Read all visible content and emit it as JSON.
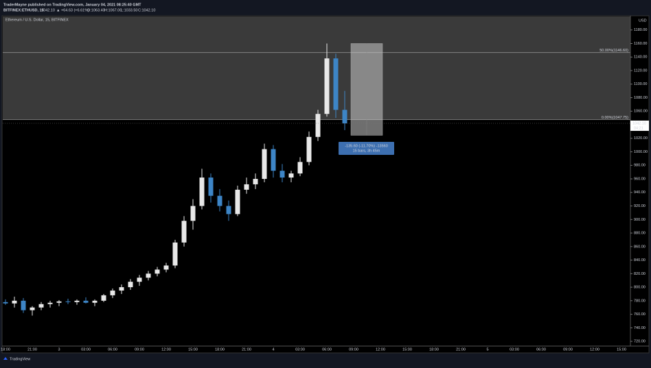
{
  "header": {
    "line1": "TraderMayne published on TradingView.com, January 04, 2021 08:25:40 GMT",
    "symbol": "BITFINEX:ETHUSD, 15",
    "last": "1042.10",
    "change": "▲ +64.63 (+6.61%)",
    "ohlc": [
      "O:1063.40",
      "H:1067.00",
      "L:1033.50",
      "C:1042.10"
    ]
  },
  "chart_data": {
    "type": "candlestick",
    "title": "Ethereum / U.S. Dollar, 15, BITFINEX",
    "y_axis_label": "USD",
    "categories": [
      "18:00",
      null,
      null,
      "21:00",
      null,
      null,
      "3",
      null,
      null,
      "03:00",
      null,
      null,
      "06:00",
      null,
      null,
      "09:00",
      null,
      null,
      "12:00",
      null,
      null,
      "15:00",
      null,
      null,
      "18:00",
      null,
      null,
      "21:00",
      null,
      null,
      "4",
      null,
      null,
      "03:00",
      null,
      null,
      "06:00",
      null,
      null,
      "09:00",
      null,
      null,
      "12:00",
      null,
      null,
      "15:00",
      null,
      null,
      "18:00",
      null,
      null,
      "21:00",
      null,
      null,
      "5",
      null,
      null,
      "03:00",
      null,
      null,
      "06:00",
      null,
      null,
      "09:00",
      null,
      null,
      "12:00",
      null,
      null,
      "15:00"
    ],
    "open": [
      778,
      776,
      780,
      766,
      770,
      775,
      777,
      779,
      778,
      780,
      777,
      780,
      788,
      795,
      800,
      808,
      814,
      820,
      826,
      832,
      866,
      898,
      920,
      962,
      935,
      920,
      908,
      944,
      952,
      960,
      1004,
      972,
      962,
      968,
      985,
      1022,
      1056,
      1138,
      1062,
      null,
      null,
      null,
      null,
      null,
      null,
      null,
      null,
      null,
      null,
      null,
      null,
      null,
      null,
      null,
      null,
      null,
      null,
      null,
      null,
      null,
      null,
      null,
      null,
      null,
      null,
      null,
      null,
      null,
      null,
      null
    ],
    "high": [
      782,
      786,
      784,
      772,
      778,
      780,
      781,
      783,
      782,
      785,
      782,
      790,
      798,
      804,
      812,
      818,
      824,
      830,
      836,
      870,
      905,
      930,
      975,
      968,
      945,
      928,
      950,
      962,
      968,
      1012,
      1010,
      982,
      972,
      992,
      1030,
      1062,
      1160,
      1145,
      1090,
      null,
      null,
      null,
      null,
      null,
      null,
      null,
      null,
      null,
      null,
      null,
      null,
      null,
      null,
      null,
      null,
      null,
      null,
      null,
      null,
      null,
      null,
      null,
      null,
      null,
      null,
      null,
      null,
      null,
      null,
      null
    ],
    "low": [
      774,
      770,
      762,
      758,
      766,
      770,
      772,
      775,
      774,
      776,
      772,
      778,
      784,
      790,
      796,
      802,
      810,
      816,
      822,
      828,
      860,
      885,
      915,
      925,
      912,
      898,
      905,
      938,
      945,
      955,
      962,
      955,
      955,
      964,
      980,
      1016,
      1052,
      1050,
      1032,
      null,
      null,
      null,
      null,
      null,
      null,
      null,
      null,
      null,
      null,
      null,
      null,
      null,
      null,
      null,
      null,
      null,
      null,
      null,
      null,
      null,
      null,
      null,
      null,
      null,
      null,
      null,
      null,
      null,
      null,
      null
    ],
    "close": [
      776,
      780,
      766,
      770,
      775,
      777,
      779,
      778,
      780,
      777,
      780,
      788,
      795,
      800,
      808,
      814,
      820,
      826,
      832,
      866,
      898,
      920,
      962,
      935,
      920,
      908,
      944,
      952,
      960,
      1004,
      972,
      962,
      968,
      985,
      1022,
      1056,
      1138,
      1062,
      1042,
      null,
      null,
      null,
      null,
      null,
      null,
      null,
      null,
      null,
      null,
      null,
      null,
      null,
      null,
      null,
      null,
      null,
      null,
      null,
      null,
      null,
      null,
      null,
      null,
      null,
      null,
      null,
      null,
      null,
      null,
      null
    ],
    "up_color": "#e8e8e8",
    "down_color": "#3d85c6",
    "ylim": [
      713,
      1200
    ],
    "yticks": [
      {
        "value": 720,
        "label": "720.00"
      },
      {
        "value": 740,
        "label": "740.00"
      },
      {
        "value": 760,
        "label": "760.00"
      },
      {
        "value": 780,
        "label": "780.00"
      },
      {
        "value": 800,
        "label": "800.00"
      },
      {
        "value": 820,
        "label": "820.00"
      },
      {
        "value": 840,
        "label": "840.00"
      },
      {
        "value": 860,
        "label": "860.00"
      },
      {
        "value": 880,
        "label": "880.00"
      },
      {
        "value": 900,
        "label": "900.00"
      },
      {
        "value": 920,
        "label": "920.00"
      },
      {
        "value": 940,
        "label": "940.00"
      },
      {
        "value": 960,
        "label": "960.00"
      },
      {
        "value": 980,
        "label": "980.00"
      },
      {
        "value": 1000,
        "label": "1000.00"
      },
      {
        "value": 1020,
        "label": "1020.00"
      },
      {
        "value": 1040,
        "label": "1040.00"
      },
      {
        "value": 1060,
        "label": "1060.00"
      },
      {
        "value": 1080,
        "label": "1080.00"
      },
      {
        "value": 1100,
        "label": "1100.00"
      },
      {
        "value": 1120,
        "label": "1120.00"
      },
      {
        "value": 1140,
        "label": "1140.00"
      },
      {
        "value": 1160,
        "label": "1160.00"
      },
      {
        "value": 1180,
        "label": "1180.00"
      }
    ],
    "levels": [
      {
        "value": 1146.6,
        "label": "50.00%(1146.60)"
      },
      {
        "value": 1047.75,
        "label": "0.00%(1047.75)"
      }
    ],
    "measure": {
      "from": 1160,
      "to": 1024.4,
      "label": "-135.60 (-11.70%) -13560",
      "bars_label": "15 bars, 3h 45m"
    },
    "last_price": {
      "value": 1042.1,
      "label": "1042.10"
    },
    "countdown": "04:21"
  },
  "footer": {
    "brand": "TradingView"
  }
}
